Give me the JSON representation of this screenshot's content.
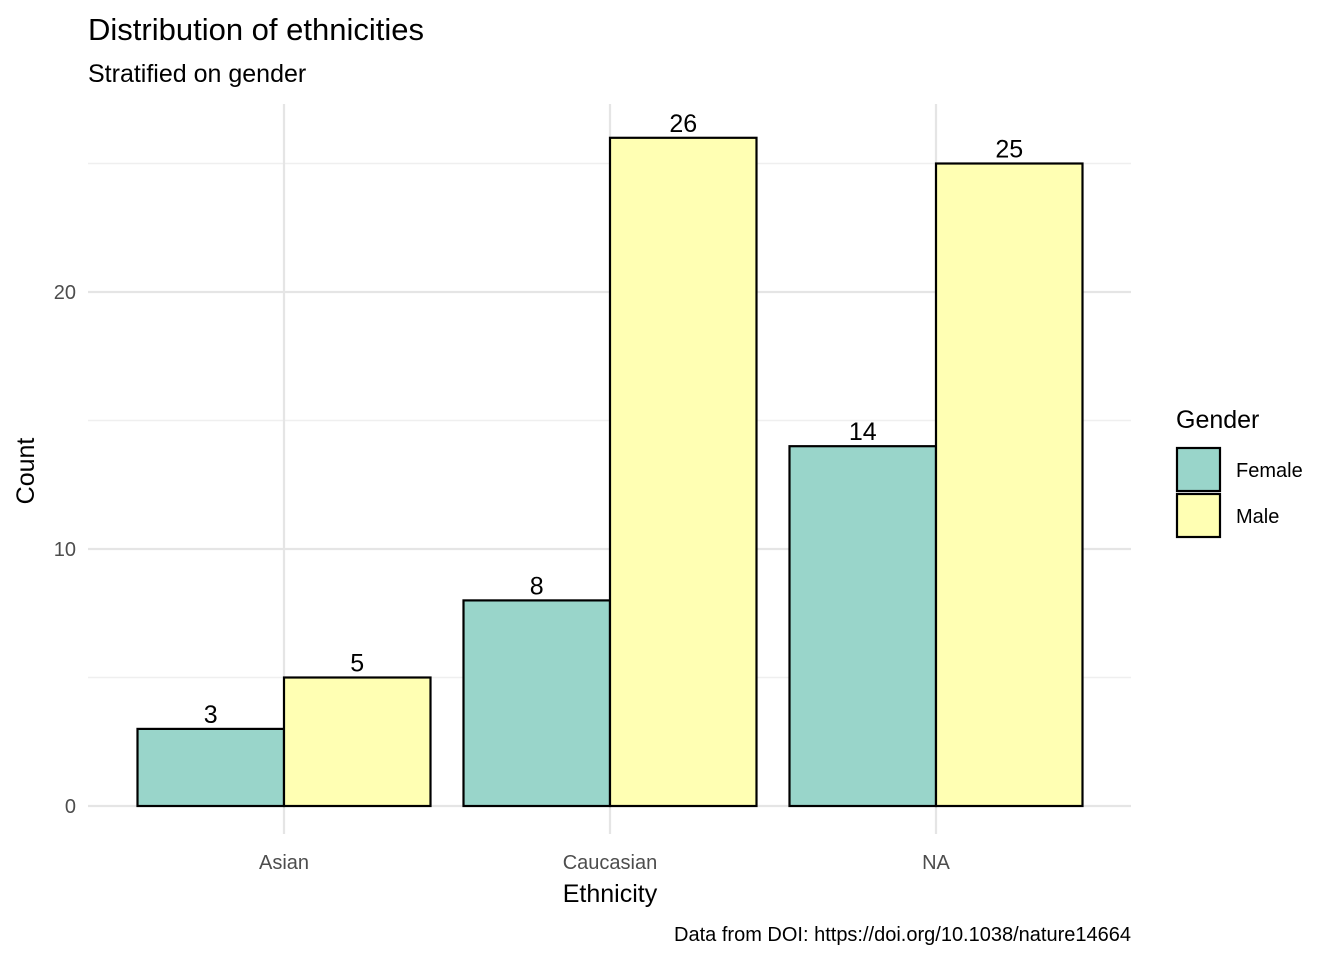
{
  "chart_data": {
    "type": "bar",
    "title": "Distribution of ethnicities",
    "subtitle": "Stratified on gender",
    "xlabel": "Ethnicity",
    "ylabel": "Count",
    "caption": "Data from DOI: https://doi.org/10.1038/nature14664",
    "categories": [
      "Asian",
      "Caucasian",
      "NA"
    ],
    "series": [
      {
        "name": "Female",
        "color": "#99d5ca",
        "values": [
          3,
          8,
          14
        ]
      },
      {
        "name": "Male",
        "color": "#ffffb3",
        "values": [
          5,
          26,
          25
        ]
      }
    ],
    "yticks": [
      0,
      10,
      20
    ],
    "ylim": [
      0,
      27.5
    ],
    "grid": true,
    "legend": {
      "title": "Gender",
      "position": "right"
    },
    "bar_outline_color": "#000000"
  }
}
